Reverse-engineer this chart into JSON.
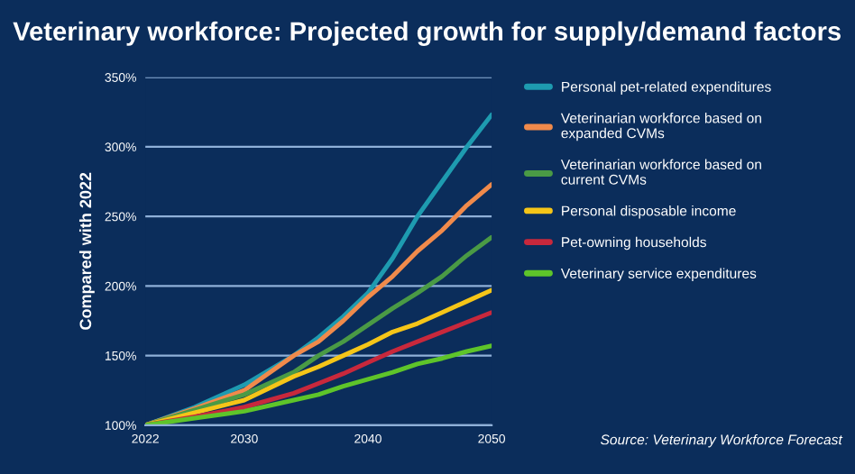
{
  "chart_data": {
    "type": "line",
    "title": "Veterinary workforce: Projected growth for supply/demand factors",
    "ylabel": "Compared with 2022",
    "x": [
      2022,
      2026,
      2030,
      2034,
      2036,
      2038,
      2040,
      2042,
      2044,
      2046,
      2048,
      2050
    ],
    "series": [
      {
        "name": "Personal pet-related expenditures",
        "color": "#1e9bb0",
        "values": [
          100,
          113,
          129,
          150,
          163,
          178,
          195,
          220,
          250,
          275,
          300,
          323
        ]
      },
      {
        "name": "Veterinarian workforce based on\nexpanded CVMs",
        "color": "#f08a4b",
        "values": [
          100,
          112,
          125,
          150,
          160,
          175,
          192,
          207,
          225,
          240,
          258,
          273
        ]
      },
      {
        "name": "Veterinarian workforce based on\ncurrent CVMs",
        "color": "#4a9a45",
        "values": [
          100,
          111,
          122,
          138,
          150,
          160,
          172,
          184,
          195,
          207,
          222,
          235
        ]
      },
      {
        "name": "Personal disposable income",
        "color": "#f5c518",
        "values": [
          100,
          109,
          118,
          135,
          142,
          150,
          158,
          167,
          173,
          181,
          189,
          197
        ]
      },
      {
        "name": "Pet-owning households",
        "color": "#c8283c",
        "values": [
          100,
          106,
          113,
          123,
          130,
          137,
          145,
          153,
          160,
          167,
          174,
          181
        ]
      },
      {
        "name": "Veterinary service expenditures",
        "color": "#5ec42a",
        "values": [
          100,
          105,
          110,
          118,
          122,
          128,
          133,
          138,
          144,
          148,
          153,
          157
        ]
      }
    ],
    "xlim": [
      2022,
      2050
    ],
    "xticks": [
      2022,
      2030,
      2040,
      2050
    ],
    "ylim": [
      100,
      350
    ],
    "yticks": [
      {
        "value": 100,
        "label": "100%"
      },
      {
        "value": 150,
        "label": "150%"
      },
      {
        "value": 200,
        "label": "200%"
      },
      {
        "value": 250,
        "label": "250%"
      },
      {
        "value": 300,
        "label": "300%"
      },
      {
        "value": 350,
        "label": "350%"
      }
    ],
    "grid": "y",
    "legend": "right",
    "annotations": [
      "Source: Veterinary Workforce Forecast"
    ]
  }
}
